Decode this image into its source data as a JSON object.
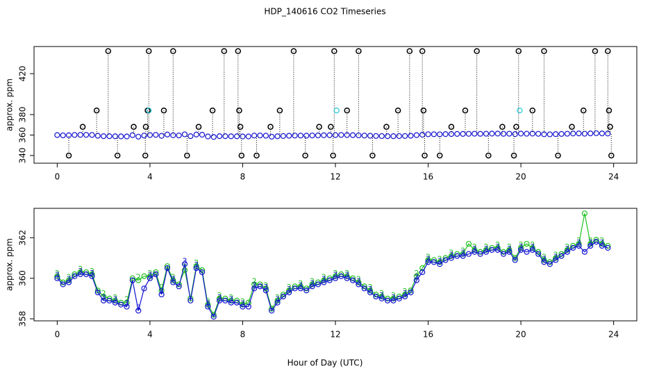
{
  "chart_data": [
    {
      "type": "scatter",
      "title": "HDP_140616  CO2 Timeseries",
      "ylabel": "approx. ppm",
      "xlim": [
        -1,
        25
      ],
      "xticks": [
        0,
        4,
        8,
        12,
        16,
        20,
        24
      ],
      "ylim": [
        332.5,
        446.5
      ],
      "yticks": [
        340,
        360,
        380,
        420
      ],
      "x": [
        0,
        0.25,
        0.5,
        0.75,
        1,
        1.25,
        1.5,
        1.75,
        2,
        2.25,
        2.5,
        2.75,
        3,
        3.25,
        3.5,
        3.75,
        4,
        4.25,
        4.5,
        4.75,
        5,
        5.25,
        5.5,
        5.75,
        6,
        6.25,
        6.5,
        6.75,
        7,
        7.25,
        7.5,
        7.75,
        8,
        8.25,
        8.5,
        8.75,
        9,
        9.25,
        9.5,
        9.75,
        10,
        10.25,
        10.5,
        10.75,
        11,
        11.25,
        11.5,
        11.75,
        12,
        12.25,
        12.5,
        12.75,
        13,
        13.25,
        13.5,
        13.75,
        14,
        14.25,
        14.5,
        14.75,
        15,
        15.25,
        15.5,
        15.75,
        16,
        16.25,
        16.5,
        16.75,
        17,
        17.25,
        17.5,
        17.75,
        18,
        18.25,
        18.5,
        18.75,
        19,
        19.25,
        19.5,
        19.75,
        20,
        20.25,
        20.5,
        20.75,
        21,
        21.25,
        21.5,
        21.75,
        22,
        22.25,
        22.5,
        22.75,
        23,
        23.25,
        23.5,
        23.75
      ],
      "series": [
        {
          "color": "#1010d0",
          "values": [
            360,
            359.7,
            359.8,
            360.1,
            360.2,
            360.2,
            360.1,
            359.3,
            358.9,
            358.9,
            358.8,
            358.7,
            358.6,
            359.9,
            358.4,
            359.5,
            360,
            360.2,
            359.2,
            360.5,
            359.8,
            359.6,
            360.7,
            358.9,
            360.5,
            360.3,
            358.6,
            358.1,
            358.9,
            358.9,
            358.8,
            358.8,
            358.6,
            358.6,
            359.5,
            359.6,
            359.4,
            358.4,
            358.8,
            359.1,
            359.3,
            359.5,
            359.5,
            359.4,
            359.6,
            359.7,
            359.8,
            359.9,
            360,
            360.1,
            360,
            359.9,
            359.7,
            359.5,
            359.3,
            359.1,
            359,
            358.9,
            358.9,
            359,
            359.1,
            359.3,
            359.9,
            360.3,
            360.8,
            360.8,
            360.7,
            360.9,
            361,
            361.1,
            361.1,
            361.2,
            361.3,
            361.2,
            361.3,
            361.4,
            361.4,
            361.2,
            361.3,
            360.9,
            361.4,
            361.3,
            361.4,
            361.2,
            360.8,
            360.7,
            360.9,
            361.1,
            361.3,
            361.5,
            361.6,
            361.3,
            361.6,
            361.8,
            361.6,
            361.5
          ]
        },
        {
          "color": "#000000",
          "dotted_drop": true,
          "x": [
            0.5,
            1.1,
            1.7,
            2.2,
            2.6,
            3.3,
            3.8,
            3.82,
            3.9,
            3.95,
            4.6,
            5,
            5.6,
            6.1,
            6.7,
            7.2,
            7.8,
            7.85,
            7.9,
            7.95,
            8.6,
            9.2,
            9.6,
            10.2,
            10.7,
            11.3,
            11.8,
            11.9,
            11.95,
            12.5,
            13,
            13.6,
            14.2,
            14.7,
            15.2,
            15.75,
            15.8,
            15.85,
            16.5,
            17,
            17.6,
            18.1,
            18.6,
            19.2,
            19.7,
            19.8,
            19.9,
            20.5,
            21,
            21.6,
            22.2,
            22.7,
            23.2,
            23.75,
            23.8,
            23.85,
            23.9
          ],
          "values": [
            340,
            368,
            384,
            442,
            340,
            368,
            340,
            368,
            384,
            442,
            384,
            442,
            340,
            368,
            384,
            442,
            442,
            384,
            368,
            340,
            340,
            368,
            384,
            442,
            340,
            368,
            368,
            340,
            442,
            384,
            442,
            340,
            368,
            384,
            442,
            442,
            384,
            340,
            340,
            368,
            384,
            442,
            340,
            368,
            340,
            368,
            442,
            384,
            442,
            340,
            368,
            384,
            442,
            442,
            384,
            368,
            340
          ]
        },
        {
          "color": "#20c8d8",
          "x": [
            3.95,
            12.05,
            19.95
          ],
          "values": [
            384,
            384,
            384
          ]
        }
      ]
    },
    {
      "type": "scatter",
      "ylabel": "approx. ppm",
      "xlabel": "Hour of Day (UTC)",
      "xlim": [
        -1,
        25
      ],
      "xticks": [
        0,
        4,
        8,
        12,
        16,
        20,
        24
      ],
      "ylim": [
        357.9,
        363.45
      ],
      "yticks": [
        358,
        360,
        362
      ],
      "x": [
        0,
        0.25,
        0.5,
        0.75,
        1,
        1.25,
        1.5,
        1.75,
        2,
        2.25,
        2.5,
        2.75,
        3,
        3.25,
        3.5,
        3.75,
        4,
        4.25,
        4.5,
        4.75,
        5,
        5.25,
        5.5,
        5.75,
        6,
        6.25,
        6.5,
        6.75,
        7,
        7.25,
        7.5,
        7.75,
        8,
        8.25,
        8.5,
        8.75,
        9,
        9.25,
        9.5,
        9.75,
        10,
        10.25,
        10.5,
        10.75,
        11,
        11.25,
        11.5,
        11.75,
        12,
        12.25,
        12.5,
        12.75,
        13,
        13.25,
        13.5,
        13.75,
        14,
        14.25,
        14.5,
        14.75,
        15,
        15.25,
        15.5,
        15.75,
        16,
        16.25,
        16.5,
        16.75,
        17,
        17.25,
        17.5,
        17.75,
        18,
        18.25,
        18.5,
        18.75,
        19,
        19.25,
        19.5,
        19.75,
        20,
        20.25,
        20.5,
        20.75,
        21,
        21.25,
        21.5,
        21.75,
        22,
        22.25,
        22.5,
        22.75,
        23,
        23.25,
        23.5,
        23.75
      ],
      "series": [
        {
          "color": "#20c020",
          "marker": "2",
          "values": [
            360.1,
            359.8,
            359.9,
            360.2,
            360.3,
            360.3,
            360.2,
            359.4,
            359.1,
            359.0,
            358.9,
            358.8,
            358.8,
            360.0,
            359.9,
            360.1,
            360.1,
            360.3,
            359.4,
            360.6,
            359.9,
            359.7,
            360.4,
            359.0,
            360.6,
            360.4,
            358.7,
            358.2,
            359.0,
            359.0,
            358.9,
            358.9,
            358.7,
            358.8,
            359.7,
            359.7,
            359.5,
            358.5,
            358.9,
            359.2,
            359.4,
            359.6,
            359.6,
            359.5,
            359.7,
            359.8,
            359.9,
            360.0,
            360.1,
            360.2,
            360.1,
            360.0,
            359.8,
            359.6,
            359.4,
            359.2,
            359.1,
            359.0,
            359.0,
            359.1,
            359.2,
            359.4,
            360.1,
            360.5,
            360.9,
            360.9,
            360.8,
            361.0,
            361.1,
            361.2,
            361.2,
            361.7,
            361.4,
            361.3,
            361.4,
            361.5,
            361.5,
            361.3,
            361.4,
            361.0,
            361.5,
            361.7,
            361.5,
            361.3,
            360.9,
            360.8,
            361.0,
            361.2,
            361.4,
            361.6,
            361.7,
            363.2,
            361.7,
            361.9,
            361.7,
            361.6
          ]
        },
        {
          "color": "#1010d0",
          "marker": "3",
          "values": [
            360,
            359.7,
            359.8,
            360.1,
            360.2,
            360.2,
            360.1,
            359.3,
            358.9,
            358.9,
            358.8,
            358.7,
            358.6,
            359.9,
            358.4,
            359.5,
            360,
            360.2,
            359.2,
            360.5,
            359.8,
            359.6,
            360.7,
            358.9,
            360.5,
            360.3,
            358.6,
            358.1,
            358.9,
            358.9,
            358.8,
            358.8,
            358.6,
            358.6,
            359.5,
            359.6,
            359.4,
            358.4,
            358.8,
            359.1,
            359.3,
            359.5,
            359.5,
            359.4,
            359.6,
            359.7,
            359.8,
            359.9,
            360,
            360.1,
            360,
            359.9,
            359.7,
            359.5,
            359.3,
            359.1,
            359,
            358.9,
            358.9,
            359,
            359.1,
            359.3,
            359.9,
            360.3,
            360.8,
            360.8,
            360.7,
            360.9,
            361,
            361.1,
            361.1,
            361.2,
            361.3,
            361.2,
            361.3,
            361.4,
            361.4,
            361.2,
            361.3,
            360.9,
            361.4,
            361.3,
            361.4,
            361.2,
            360.8,
            360.7,
            360.9,
            361.1,
            361.3,
            361.5,
            361.6,
            361.3,
            361.6,
            361.8,
            361.6,
            361.5
          ]
        }
      ]
    }
  ]
}
